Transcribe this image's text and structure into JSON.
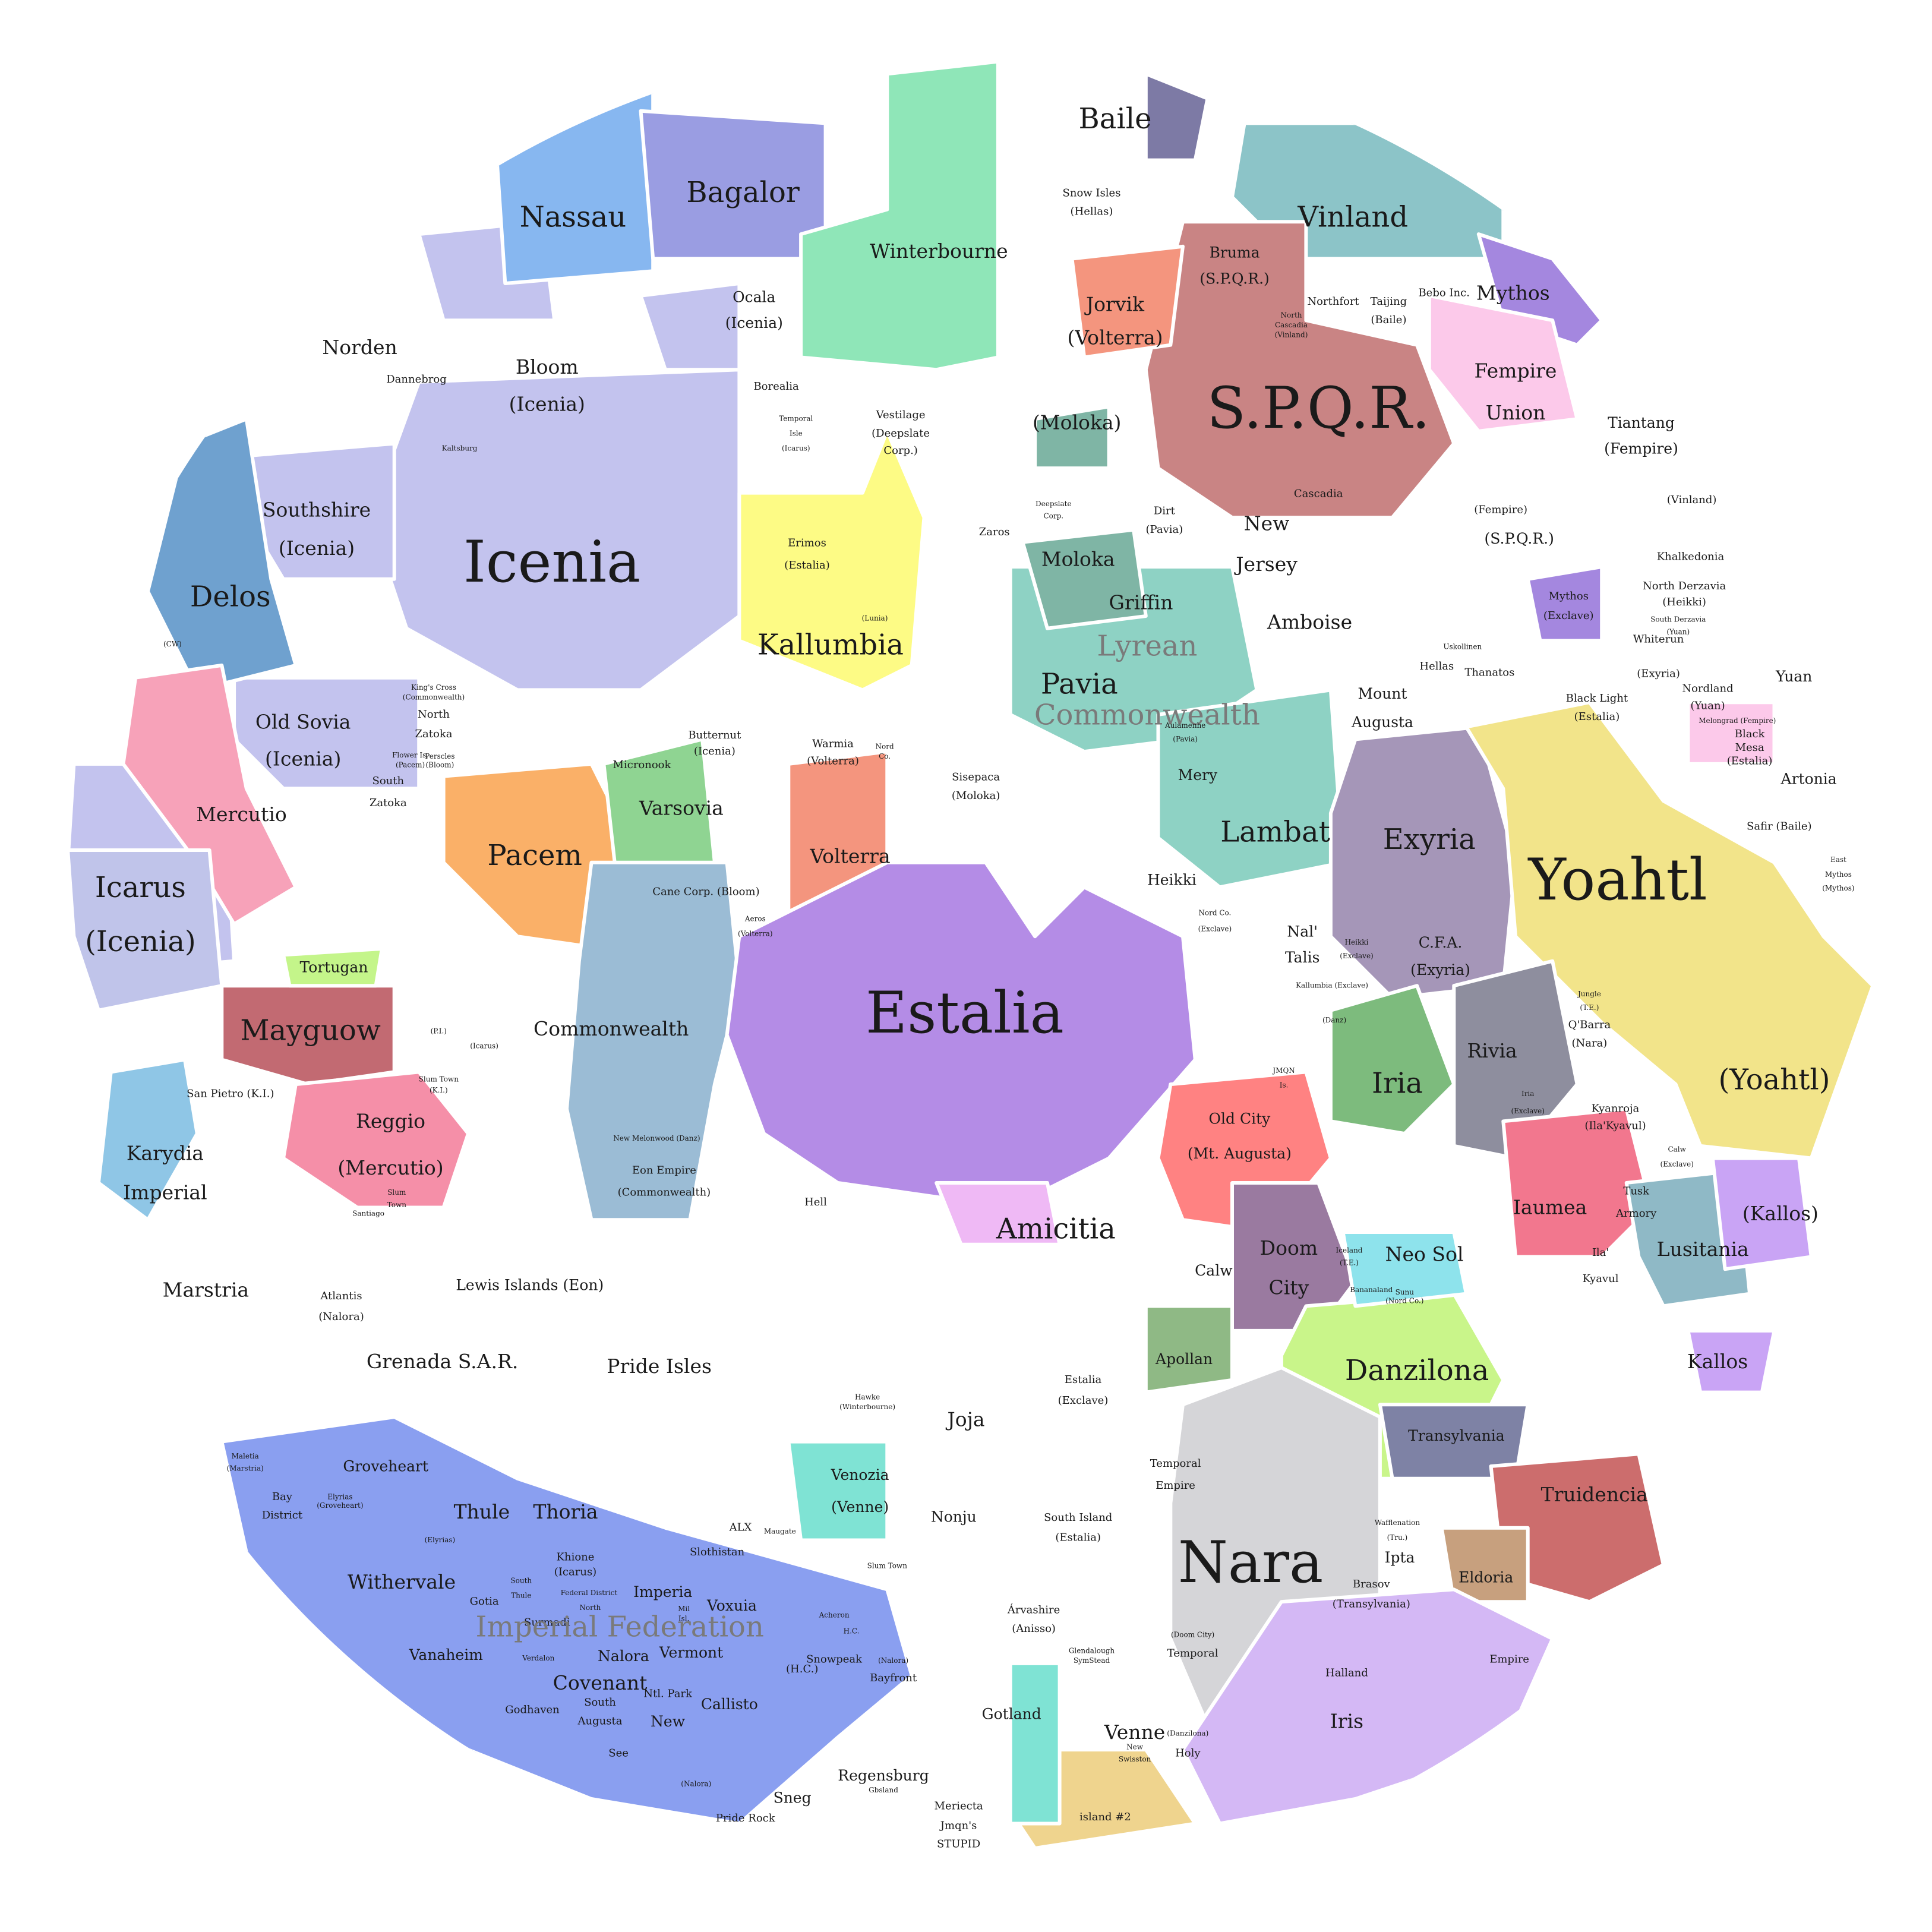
{
  "colors": {
    "background": "#ffffff",
    "region_border": "#ffffff",
    "label": "#1a1a1a",
    "faded_label": "#7a7a7a"
  },
  "regions": [
    {
      "name": "Icenia",
      "color": "#c3c3ee"
    },
    {
      "name": "Nassau",
      "color": "#87b7f0"
    },
    {
      "name": "Bagalor",
      "color": "#9a9de2"
    },
    {
      "name": "Winterbourne",
      "color": "#8fe6b8"
    },
    {
      "name": "Vinland",
      "color": "#8cc4c8"
    },
    {
      "name": "S.P.Q.R.",
      "color": "#c98484"
    },
    {
      "name": "Mythos",
      "color": "#a487df"
    },
    {
      "name": "Fempire Union",
      "color": "#fcc9ea"
    },
    {
      "name": "Delos",
      "color": "#6fa1cf"
    },
    {
      "name": "Mercutio",
      "color": "#f7a2b9"
    },
    {
      "name": "Icarus",
      "color": "#c0c4ea"
    },
    {
      "name": "Mayguow",
      "color": "#c26a72"
    },
    {
      "name": "Tortugan",
      "color": "#c4f58a"
    },
    {
      "name": "Reggio",
      "color": "#f58fa8"
    },
    {
      "name": "Karydia Imperial",
      "color": "#8fc6e6"
    },
    {
      "name": "Pacem",
      "color": "#fab068"
    },
    {
      "name": "Varsovia",
      "color": "#8fd492"
    },
    {
      "name": "Kallumbia",
      "color": "#fdfb85"
    },
    {
      "name": "Commonwealth",
      "color": "#9bbcd5"
    },
    {
      "name": "Volterra",
      "color": "#f4957e"
    },
    {
      "name": "Estalia",
      "color": "#b48ce6"
    },
    {
      "name": "Lyrean Commonwealth",
      "color": "#8ed2c4"
    },
    {
      "name": "Moloka",
      "color": "#7fb5a5"
    },
    {
      "name": "Exyria",
      "color": "#a596b8"
    },
    {
      "name": "Yoahtl",
      "color": "#f2e48a"
    },
    {
      "name": "Iria",
      "color": "#7dbb7d"
    },
    {
      "name": "Rivia",
      "color": "#8e8e9e"
    },
    {
      "name": "Old City",
      "color": "#ff8282"
    },
    {
      "name": "Iaumea",
      "color": "#f2778e"
    },
    {
      "name": "Lusitania",
      "color": "#8fb9c6"
    },
    {
      "name": "Kallos",
      "color": "#c9a4f5"
    },
    {
      "name": "Doom City",
      "color": "#9a7aa0"
    },
    {
      "name": "Danzilona",
      "color": "#c9f58a"
    },
    {
      "name": "Neo Sol",
      "color": "#8ee3ec"
    },
    {
      "name": "Apollan",
      "color": "#8fb985"
    },
    {
      "name": "Transylvania",
      "color": "#7e82a5"
    },
    {
      "name": "Truidencia",
      "color": "#cc6d6d"
    },
    {
      "name": "Eldoria",
      "color": "#c7a07e"
    },
    {
      "name": "Nara",
      "color": "#d5d5d8"
    },
    {
      "name": "Iris Covenant",
      "color": "#d4b8f5"
    },
    {
      "name": "Anisso",
      "color": "#efd48e"
    },
    {
      "name": "Venne",
      "color": "#7fe3d4"
    },
    {
      "name": "Imperial Federation",
      "color": "#8a9ff0"
    },
    {
      "name": "Baile",
      "color": "#7d7aa5"
    },
    {
      "name": "Amicitia",
      "color": "#efb9f5"
    }
  ],
  "labels": [
    {
      "text": "Baile",
      "size": 1
    },
    {
      "text": "Snow Isles",
      "size": 4
    },
    {
      "text": "(Hellas)",
      "size": 4
    },
    {
      "text": "Nassau",
      "size": 1
    },
    {
      "text": "Bagalor",
      "size": 1
    },
    {
      "text": "Winterbourne",
      "size": 2
    },
    {
      "text": "Vinland",
      "size": 1
    },
    {
      "text": "Bruma",
      "size": 3
    },
    {
      "text": "(S.P.Q.R.)",
      "size": 3
    },
    {
      "text": "Northfort",
      "size": 4
    },
    {
      "text": "Taijing",
      "size": 4
    },
    {
      "text": "(Baile)",
      "size": 4
    },
    {
      "text": "Bebo Inc.",
      "size": 4
    },
    {
      "text": "Mythos",
      "size": 2
    },
    {
      "text": "North",
      "size": 5
    },
    {
      "text": "Cascadia",
      "size": 5
    },
    {
      "text": "(Vinland)",
      "size": 5
    },
    {
      "text": "Jorvik",
      "size": 2
    },
    {
      "text": "(Volterra)",
      "size": 2
    },
    {
      "text": "Ocala",
      "size": 3
    },
    {
      "text": "(Icenia)",
      "size": 3
    },
    {
      "text": "Norden",
      "size": 2
    },
    {
      "text": "Dannebrog",
      "size": 4
    },
    {
      "text": "Bloom",
      "size": 2
    },
    {
      "text": "(Icenia)",
      "size": 2
    },
    {
      "text": "Fempire",
      "size": 2
    },
    {
      "text": "Union",
      "size": 2
    },
    {
      "text": "Borealia",
      "size": 4
    },
    {
      "text": "Temporal",
      "size": 5
    },
    {
      "text": "Isle",
      "size": 5
    },
    {
      "text": "(Icarus)",
      "size": 5
    },
    {
      "text": "Vestilage",
      "size": 4
    },
    {
      "text": "(Deepslate",
      "size": 4
    },
    {
      "text": "Corp.)",
      "size": 4
    },
    {
      "text": "(Moloka)",
      "size": 2
    },
    {
      "text": "S.P.Q.R.",
      "size": 0
    },
    {
      "text": "Tiantang",
      "size": 3
    },
    {
      "text": "(Fempire)",
      "size": 3
    },
    {
      "text": "Kaltsburg",
      "size": 5
    },
    {
      "text": "Southshire",
      "size": 2
    },
    {
      "text": "(Icenia)",
      "size": 2
    },
    {
      "text": "Icenia",
      "size": 0
    },
    {
      "text": "Deepslate",
      "size": 5
    },
    {
      "text": "Corp.",
      "size": 5
    },
    {
      "text": "Dirt",
      "size": 4
    },
    {
      "text": "(Pavia)",
      "size": 4
    },
    {
      "text": "Cascadia",
      "size": 4
    },
    {
      "text": "(Fempire)",
      "size": 4
    },
    {
      "text": "(Vinland)",
      "size": 4
    },
    {
      "text": "(S.P.Q.R.)",
      "size": 3
    },
    {
      "text": "Zaros",
      "size": 4
    },
    {
      "text": "New",
      "size": 2
    },
    {
      "text": "Jersey",
      "size": 2
    },
    {
      "text": "Erimos",
      "size": 4
    },
    {
      "text": "(Estalia)",
      "size": 4
    },
    {
      "text": "Moloka",
      "size": 2
    },
    {
      "text": "Khalkedonia",
      "size": 4
    },
    {
      "text": "North Derzavia",
      "size": 4
    },
    {
      "text": "(Heikki)",
      "size": 4
    },
    {
      "text": "Delos",
      "size": 1
    },
    {
      "text": "Griffin",
      "size": 2
    },
    {
      "text": "Mythos",
      "size": 4
    },
    {
      "text": "(Exclave)",
      "size": 4
    },
    {
      "text": "South Derzavia",
      "size": 5
    },
    {
      "text": "(Yuan)",
      "size": 5
    },
    {
      "text": "(Lunia)",
      "size": 5
    },
    {
      "text": "Amboise",
      "size": 2
    },
    {
      "text": "Uskollinen",
      "size": 5
    },
    {
      "text": "Kallumbia",
      "size": 1
    },
    {
      "text": "(CW)",
      "size": 5
    },
    {
      "text": "Lyrean",
      "size": 1,
      "faded": true
    },
    {
      "text": "Whiterun",
      "size": 4
    },
    {
      "text": "(Exyria)",
      "size": 4
    },
    {
      "text": "Hellas",
      "size": 4
    },
    {
      "text": "Thanatos",
      "size": 4
    },
    {
      "text": "Yuan",
      "size": 3
    },
    {
      "text": "King's Cross",
      "size": 5
    },
    {
      "text": "(Commonwealth)",
      "size": 5
    },
    {
      "text": "Pavia",
      "size": 1
    },
    {
      "text": "Mount",
      "size": 3
    },
    {
      "text": "Augusta",
      "size": 3
    },
    {
      "text": "Old Sovia",
      "size": 2
    },
    {
      "text": "(Icenia)",
      "size": 2
    },
    {
      "text": "North",
      "size": 4
    },
    {
      "text": "Zatoka",
      "size": 4
    },
    {
      "text": "Commonwealth",
      "size": 1,
      "faded": true
    },
    {
      "text": "Black Light",
      "size": 4
    },
    {
      "text": "(Estalia)",
      "size": 4
    },
    {
      "text": "Nordland",
      "size": 4
    },
    {
      "text": "(Yuan)",
      "size": 4
    },
    {
      "text": "Melongrad (Fempire)",
      "size": 5
    },
    {
      "text": "Black",
      "size": 4
    },
    {
      "text": "Mesa",
      "size": 4
    },
    {
      "text": "(Estalia)",
      "size": 4
    },
    {
      "text": "Butternut",
      "size": 4
    },
    {
      "text": "(Icenia)",
      "size": 4
    },
    {
      "text": "Warmia",
      "size": 4
    },
    {
      "text": "(Volterra)",
      "size": 4
    },
    {
      "text": "Nord",
      "size": 5
    },
    {
      "text": "Co.",
      "size": 5
    },
    {
      "text": "Aulamenhe",
      "size": 5
    },
    {
      "text": "(Pavia)",
      "size": 5
    },
    {
      "text": "Flower Is.",
      "size": 5
    },
    {
      "text": "(Pacem)",
      "size": 5
    },
    {
      "text": "Perscles",
      "size": 5
    },
    {
      "text": "(Bloom)",
      "size": 5
    },
    {
      "text": "Micronook",
      "size": 4
    },
    {
      "text": "Sisepaca",
      "size": 4
    },
    {
      "text": "(Moloka)",
      "size": 4
    },
    {
      "text": "Mery",
      "size": 3
    },
    {
      "text": "Artonia",
      "size": 3
    },
    {
      "text": "South",
      "size": 4
    },
    {
      "text": "Zatoka",
      "size": 4
    },
    {
      "text": "Varsovia",
      "size": 2
    },
    {
      "text": "Mercutio",
      "size": 2
    },
    {
      "text": "Safir (Baile)",
      "size": 4
    },
    {
      "text": "Lambat",
      "size": 1
    },
    {
      "text": "Exyria",
      "size": 1
    },
    {
      "text": "Pacem",
      "size": 1
    },
    {
      "text": "Volterra",
      "size": 2
    },
    {
      "text": "East",
      "size": 5
    },
    {
      "text": "Mythos",
      "size": 5
    },
    {
      "text": "(Mythos)",
      "size": 5
    },
    {
      "text": "Heikki",
      "size": 3
    },
    {
      "text": "Icarus",
      "size": 1
    },
    {
      "text": "(Icenia)",
      "size": 1
    },
    {
      "text": "Yoahtl",
      "size": 0
    },
    {
      "text": "Cane Corp. (Bloom)",
      "size": 4
    },
    {
      "text": "Nord Co.",
      "size": 5
    },
    {
      "text": "(Exclave)",
      "size": 5
    },
    {
      "text": "Aeros",
      "size": 5
    },
    {
      "text": "(Volterra)",
      "size": 5
    },
    {
      "text": "Nal'",
      "size": 3
    },
    {
      "text": "Talis",
      "size": 3
    },
    {
      "text": "Heikki",
      "size": 5
    },
    {
      "text": "(Exclave)",
      "size": 5
    },
    {
      "text": "C.F.A.",
      "size": 3
    },
    {
      "text": "(Exyria)",
      "size": 3
    },
    {
      "text": "Tortugan",
      "size": 3
    },
    {
      "text": "Kallumbia (Exclave)",
      "size": 5
    },
    {
      "text": "Jungle",
      "size": 5
    },
    {
      "text": "(T.E.)",
      "size": 5
    },
    {
      "text": "Estalia",
      "size": 0
    },
    {
      "text": "Q'Barra",
      "size": 4
    },
    {
      "text": "(Nara)",
      "size": 4
    },
    {
      "text": "(Danz)",
      "size": 5
    },
    {
      "text": "Mayguow",
      "size": 1
    },
    {
      "text": "(P.I.)",
      "size": 5
    },
    {
      "text": "Commonwealth",
      "size": 2
    },
    {
      "text": "(Icarus)",
      "size": 5
    },
    {
      "text": "Rivia",
      "size": 2
    },
    {
      "text": "JMQN",
      "size": 5
    },
    {
      "text": "Is.",
      "size": 5
    },
    {
      "text": "Slum Town",
      "size": 5
    },
    {
      "text": "(K.I.)",
      "size": 5
    },
    {
      "text": "Iria",
      "size": 1
    },
    {
      "text": "(Yoahtl)",
      "size": 1
    },
    {
      "text": "San Pietro (K.I.)",
      "size": 4
    },
    {
      "text": "Iria",
      "size": 5
    },
    {
      "text": "(Exclave)",
      "size": 5
    },
    {
      "text": "Kyanroja",
      "size": 4
    },
    {
      "text": "(Ila'Kyavul)",
      "size": 4
    },
    {
      "text": "Reggio",
      "size": 2
    },
    {
      "text": "(Mercutio)",
      "size": 2
    },
    {
      "text": "Old City",
      "size": 3
    },
    {
      "text": "(Mt. Augusta)",
      "size": 3
    },
    {
      "text": "Karydia",
      "size": 2
    },
    {
      "text": "Imperial",
      "size": 2
    },
    {
      "text": "New Melonwood (Danz)",
      "size": 5
    },
    {
      "text": "Calw",
      "size": 5
    },
    {
      "text": "(Exclave)",
      "size": 5
    },
    {
      "text": "Eon Empire",
      "size": 4
    },
    {
      "text": "(Commonwealth)",
      "size": 4
    },
    {
      "text": "Slum",
      "size": 5
    },
    {
      "text": "Town",
      "size": 5
    },
    {
      "text": "Santiago",
      "size": 5
    },
    {
      "text": "Tusk",
      "size": 4
    },
    {
      "text": "Armory",
      "size": 4
    },
    {
      "text": "Hell",
      "size": 4
    },
    {
      "text": "Iaumea",
      "size": 2
    },
    {
      "text": "(Kallos)",
      "size": 2
    },
    {
      "text": "Amicitia",
      "size": 1
    },
    {
      "text": "Doom",
      "size": 2
    },
    {
      "text": "City",
      "size": 2
    },
    {
      "text": "Iceland",
      "size": 5
    },
    {
      "text": "(T.E.)",
      "size": 5
    },
    {
      "text": "Neo Sol",
      "size": 2
    },
    {
      "text": "Calw",
      "size": 3
    },
    {
      "text": "Ila'",
      "size": 4
    },
    {
      "text": "Kyavul",
      "size": 4
    },
    {
      "text": "Lusitania",
      "size": 2
    },
    {
      "text": "Marstria",
      "size": 2
    },
    {
      "text": "Atlantis",
      "size": 4
    },
    {
      "text": "(Nalora)",
      "size": 4
    },
    {
      "text": "Lewis Islands (Eon)",
      "size": 3
    },
    {
      "text": "Bananaland",
      "size": 5
    },
    {
      "text": "Sunu",
      "size": 5
    },
    {
      "text": "(Nord Co.)",
      "size": 5
    },
    {
      "text": "Apollan",
      "size": 3
    },
    {
      "text": "Kallos",
      "size": 2
    },
    {
      "text": "Grenada S.A.R.",
      "size": 2
    },
    {
      "text": "Pride Isles",
      "size": 2
    },
    {
      "text": "Danzilona",
      "size": 1
    },
    {
      "text": "Estalia",
      "size": 4
    },
    {
      "text": "(Exclave)",
      "size": 4
    },
    {
      "text": "Hawke",
      "size": 5
    },
    {
      "text": "(Winterbourne)",
      "size": 5
    },
    {
      "text": "Joja",
      "size": 2
    },
    {
      "text": "Transylvania",
      "size": 3
    },
    {
      "text": "Temporal",
      "size": 4
    },
    {
      "text": "Empire",
      "size": 4
    },
    {
      "text": "Maletia",
      "size": 5
    },
    {
      "text": "(Marstria)",
      "size": 5
    },
    {
      "text": "Groveheart",
      "size": 3
    },
    {
      "text": "Venozia",
      "size": 3
    },
    {
      "text": "(Venne)",
      "size": 3
    },
    {
      "text": "Bay",
      "size": 4
    },
    {
      "text": "District",
      "size": 4
    },
    {
      "text": "Elyrias",
      "size": 5
    },
    {
      "text": "(Groveheart)",
      "size": 5
    },
    {
      "text": "Truidencia",
      "size": 2
    },
    {
      "text": "Thule",
      "size": 2
    },
    {
      "text": "Thoria",
      "size": 2
    },
    {
      "text": "Nonju",
      "size": 3
    },
    {
      "text": "South Island",
      "size": 4
    },
    {
      "text": "(Estalia)",
      "size": 4
    },
    {
      "text": "(Elyrias)",
      "size": 5
    },
    {
      "text": "Wafflenation",
      "size": 5
    },
    {
      "text": "(Tru.)",
      "size": 5
    },
    {
      "text": "ALX",
      "size": 4
    },
    {
      "text": "Maugate",
      "size": 5
    },
    {
      "text": "Khione",
      "size": 4
    },
    {
      "text": "(Icarus)",
      "size": 4
    },
    {
      "text": "Slothistan",
      "size": 4
    },
    {
      "text": "Nara",
      "size": 0
    },
    {
      "text": "Ipta",
      "size": 3
    },
    {
      "text": "Slum Town",
      "size": 5
    },
    {
      "text": "Eldoria",
      "size": 3
    },
    {
      "text": "Withervale",
      "size": 2
    },
    {
      "text": "South",
      "size": 5
    },
    {
      "text": "Thule",
      "size": 5
    },
    {
      "text": "Federal District",
      "size": 5
    },
    {
      "text": "Imperia",
      "size": 3
    },
    {
      "text": "Gotia",
      "size": 4
    },
    {
      "text": "Brasov",
      "size": 4
    },
    {
      "text": "(Transylvania)",
      "size": 4
    },
    {
      "text": "North",
      "size": 5
    },
    {
      "text": "Voxuia",
      "size": 3
    },
    {
      "text": "Mil",
      "size": 5
    },
    {
      "text": "Isl.",
      "size": 5
    },
    {
      "text": "Árvashire",
      "size": 4
    },
    {
      "text": "(Anisso)",
      "size": 4
    },
    {
      "text": "Surmadi",
      "size": 4
    },
    {
      "text": "Imperial Federation",
      "size": 1,
      "faded": true
    },
    {
      "text": "Acheron",
      "size": 5
    },
    {
      "text": "H.C.",
      "size": 5
    },
    {
      "text": "Vanaheim",
      "size": 3
    },
    {
      "text": "Vermont",
      "size": 3
    },
    {
      "text": "Nalora",
      "size": 3
    },
    {
      "text": "Verdalon",
      "size": 5
    },
    {
      "text": "Glendalough",
      "size": 5
    },
    {
      "text": "SymStead",
      "size": 5
    },
    {
      "text": "(Doom City)",
      "size": 5
    },
    {
      "text": "Temporal",
      "size": 4
    },
    {
      "text": "Empire",
      "size": 4
    },
    {
      "text": "Snowpeak",
      "size": 4
    },
    {
      "text": "(Nalora)",
      "size": 5
    },
    {
      "text": "Bayfront",
      "size": 4
    },
    {
      "text": "(H.C.)",
      "size": 4
    },
    {
      "text": "Halland",
      "size": 4
    },
    {
      "text": "Iris",
      "size": 2
    },
    {
      "text": "Covenant",
      "size": 2
    },
    {
      "text": "South",
      "size": 4
    },
    {
      "text": "Augusta",
      "size": 4
    },
    {
      "text": "Ntl. Park",
      "size": 4
    },
    {
      "text": "New",
      "size": 3
    },
    {
      "text": "Callisto",
      "size": 3
    },
    {
      "text": "Godhaven",
      "size": 4
    },
    {
      "text": "Gotland",
      "size": 3
    },
    {
      "text": "Venne",
      "size": 2
    },
    {
      "text": "New",
      "size": 5
    },
    {
      "text": "Swisston",
      "size": 5
    },
    {
      "text": "(Danzilona)",
      "size": 5
    },
    {
      "text": "Holy",
      "size": 4
    },
    {
      "text": "See",
      "size": 4
    },
    {
      "text": "Regensburg",
      "size": 3
    },
    {
      "text": "Gbsland",
      "size": 5
    },
    {
      "text": "(Nalora)",
      "size": 5
    },
    {
      "text": "Sneg",
      "size": 3
    },
    {
      "text": "Pride Rock",
      "size": 4
    },
    {
      "text": "Meriecta",
      "size": 4
    },
    {
      "text": "Jmqn's",
      "size": 4
    },
    {
      "text": "STUPID",
      "size": 4
    },
    {
      "text": "island #2",
      "size": 4
    },
    {
      "text": "Anisso",
      "size": 1
    }
  ]
}
